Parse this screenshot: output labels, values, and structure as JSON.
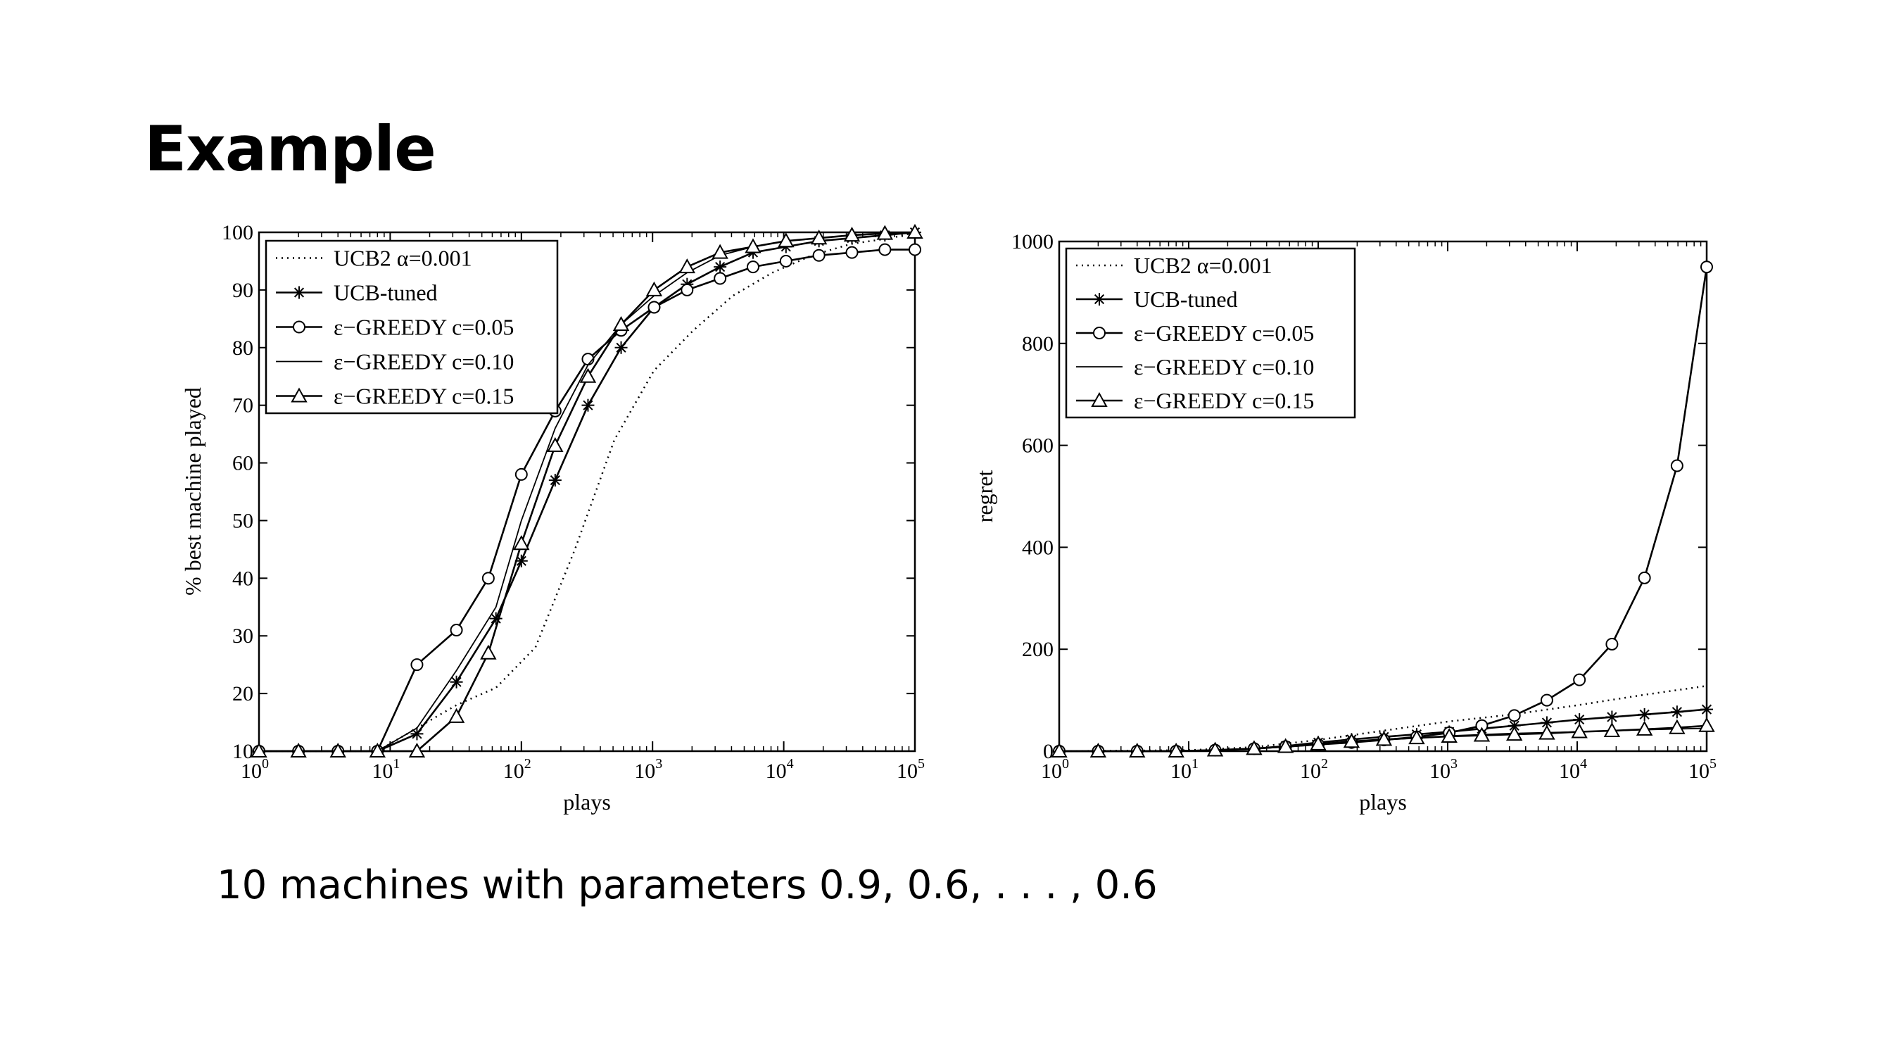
{
  "slide": {
    "title": "Example",
    "caption": "10 machines with parameters 0.9, 0.6, . . . , 0.6"
  },
  "chart_data": [
    {
      "type": "line",
      "xlabel": "plays",
      "ylabel": "% best machine played",
      "xscale": "log",
      "xlim": [
        1,
        100000
      ],
      "ylim": [
        10,
        100
      ],
      "yticks": [
        10,
        20,
        30,
        40,
        50,
        60,
        70,
        80,
        90,
        100
      ],
      "xtick_exponents": [
        "0",
        "1",
        "2",
        "3",
        "4",
        "5"
      ],
      "xtick_base": "10",
      "legend_position": "top-left",
      "grid": false,
      "series": [
        {
          "name": "UCB2 α=0.001",
          "style": "dotted",
          "marker": "none",
          "x": [
            1,
            2,
            4,
            8,
            16,
            32,
            64,
            128,
            256,
            512,
            1024,
            2048,
            4096,
            8192,
            16384,
            32768,
            65536,
            100000
          ],
          "y": [
            10,
            10,
            10,
            10,
            14,
            18,
            21,
            28,
            45,
            64,
            76,
            83,
            89,
            93,
            96,
            98,
            99,
            100
          ]
        },
        {
          "name": "UCB-tuned",
          "style": "solid",
          "marker": "star",
          "x": [
            1,
            2,
            4,
            8,
            16,
            32,
            64,
            100,
            181,
            322,
            576,
            1028,
            1834,
            3271,
            5834,
            10404,
            18556,
            33096,
            59030,
            100000
          ],
          "y": [
            10,
            10,
            10,
            10,
            13,
            22,
            33,
            43,
            57,
            70,
            80,
            87,
            91,
            94,
            96.5,
            97.5,
            98.5,
            99,
            99.5,
            100
          ]
        },
        {
          "name": "ε−GREEDY c=0.05",
          "style": "solid",
          "marker": "circle",
          "x": [
            1,
            2,
            4,
            8,
            16,
            32,
            56,
            100,
            181,
            322,
            576,
            1028,
            1834,
            3271,
            5834,
            10404,
            18556,
            33096,
            59030,
            100000
          ],
          "y": [
            10,
            10,
            10,
            10,
            25,
            31,
            40,
            58,
            69,
            78,
            83,
            87,
            90,
            92,
            94,
            95,
            96,
            96.5,
            97,
            97
          ]
        },
        {
          "name": "ε−GREEDY c=0.10",
          "style": "solid",
          "marker": "none",
          "x": [
            1,
            2,
            4,
            8,
            16,
            32,
            64,
            100,
            181,
            322,
            576,
            1028,
            1834,
            3271,
            5834,
            10404,
            18556,
            33096,
            59030,
            100000
          ],
          "y": [
            10,
            10,
            10,
            10,
            14,
            24,
            35,
            50,
            66,
            77,
            84,
            89,
            93,
            96,
            97.5,
            98.5,
            99,
            99.5,
            99.8,
            100
          ]
        },
        {
          "name": "ε−GREEDY c=0.15",
          "style": "solid",
          "marker": "triangle",
          "x": [
            1,
            2,
            4,
            8,
            16,
            32,
            56,
            100,
            181,
            322,
            576,
            1028,
            1834,
            3271,
            5834,
            10404,
            18556,
            33096,
            59030,
            100000
          ],
          "y": [
            10,
            10,
            10,
            10,
            10,
            16,
            27,
            46,
            63,
            75,
            84,
            90,
            94,
            96.5,
            97.5,
            98.5,
            99,
            99.5,
            99.8,
            100
          ]
        }
      ]
    },
    {
      "type": "line",
      "xlabel": "plays",
      "ylabel": "regret",
      "xscale": "log",
      "xlim": [
        1,
        100000
      ],
      "ylim": [
        0,
        1000
      ],
      "yticks": [
        0,
        200,
        400,
        600,
        800,
        1000
      ],
      "xtick_exponents": [
        "0",
        "1",
        "2",
        "3",
        "4",
        "5"
      ],
      "xtick_base": "10",
      "legend_position": "top-left",
      "grid": false,
      "series": [
        {
          "name": "UCB2 α=0.001",
          "style": "dotted",
          "marker": "none",
          "x": [
            1,
            10,
            32,
            100,
            316,
            1000,
            3162,
            10000,
            31623,
            100000
          ],
          "y": [
            0,
            2,
            8,
            22,
            40,
            58,
            72,
            90,
            110,
            128
          ]
        },
        {
          "name": "UCB-tuned",
          "style": "solid",
          "marker": "star",
          "x": [
            1,
            2,
            4,
            8,
            16,
            32,
            56,
            100,
            181,
            322,
            576,
            1028,
            1834,
            3271,
            5834,
            10404,
            18556,
            33096,
            59030,
            100000
          ],
          "y": [
            0,
            0,
            0,
            0,
            2,
            5,
            10,
            17,
            23,
            28,
            33,
            38,
            44,
            50,
            56,
            62,
            67,
            72,
            77,
            82
          ]
        },
        {
          "name": "ε−GREEDY c=0.05",
          "style": "solid",
          "marker": "circle",
          "x": [
            1,
            2,
            4,
            8,
            16,
            32,
            56,
            100,
            181,
            322,
            576,
            1028,
            1834,
            3271,
            5834,
            10404,
            18556,
            33096,
            59030,
            100000
          ],
          "y": [
            0,
            0,
            0,
            0,
            2,
            5,
            9,
            13,
            17,
            22,
            28,
            36,
            50,
            70,
            100,
            140,
            210,
            340,
            560,
            950
          ]
        },
        {
          "name": "ε−GREEDY c=0.10",
          "style": "solid",
          "marker": "none",
          "x": [
            1,
            4,
            16,
            56,
            100,
            322,
            1028,
            3271,
            10404,
            33096,
            100000
          ],
          "y": [
            0,
            0,
            2,
            8,
            13,
            22,
            30,
            35,
            38,
            42,
            45
          ]
        },
        {
          "name": "ε−GREEDY c=0.15",
          "style": "solid",
          "marker": "triangle",
          "x": [
            1,
            2,
            4,
            8,
            16,
            32,
            56,
            100,
            181,
            322,
            576,
            1028,
            1834,
            3271,
            5834,
            10404,
            18556,
            33096,
            59030,
            100000
          ],
          "y": [
            0,
            0,
            0,
            0,
            2,
            5,
            9,
            14,
            19,
            23,
            26,
            29,
            31,
            33,
            35,
            38,
            40,
            43,
            46,
            50
          ]
        }
      ]
    }
  ]
}
